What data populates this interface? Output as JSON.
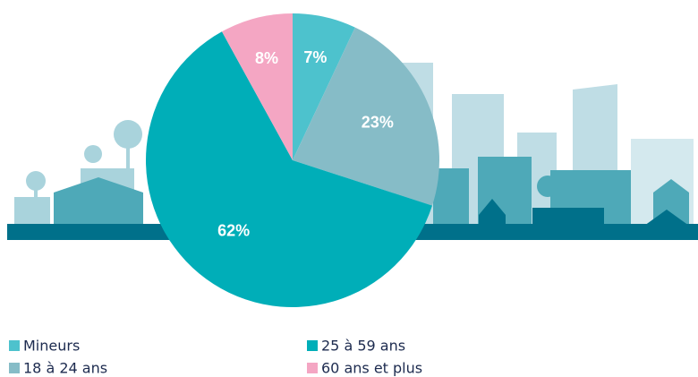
{
  "chart_data": {
    "type": "pie",
    "categories": [
      "Mineurs",
      "18 à 24 ans",
      "25 à 59 ans",
      "60 ans et plus"
    ],
    "values": [
      7,
      23,
      62,
      8
    ],
    "value_labels": [
      "7%",
      "23%",
      "62%",
      "8%"
    ],
    "colors": [
      "#4dc2cd",
      "#86bcc7",
      "#00aeb8",
      "#f4a6c3"
    ],
    "legend": "bottom"
  }
}
